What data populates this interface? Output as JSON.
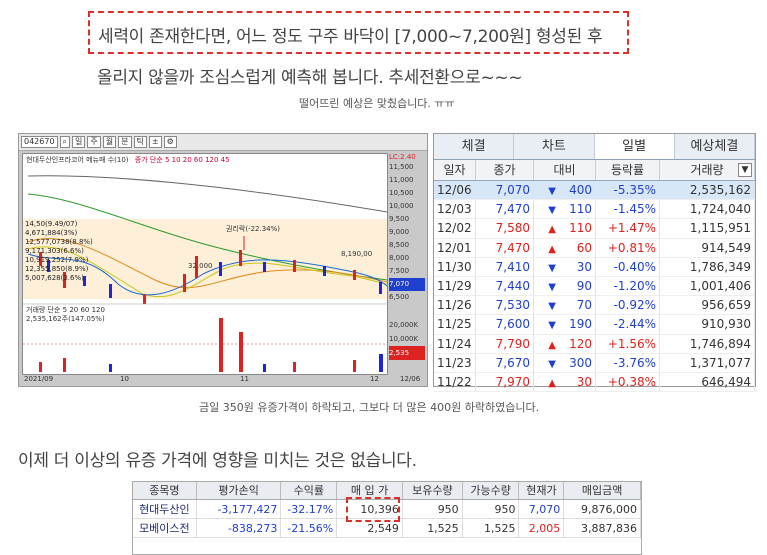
{
  "post": {
    "headline_1": "세력이 존재한다면, 어느 정도 구주 바닥이 [7,000~7,200원] 형성된 후",
    "headline_2": "올리지 않을까 조심스럽게 예측해 봅니다. 추세전환으로~~~",
    "caption_top": "떨어뜨린 예상은 맞췄습니다. ㅠㅠ",
    "caption_mid": "금일 350원 유증가격이 하락되고, 그보다 더 많은 400원 하락하였습니다.",
    "paragraph": "이제 더 이상의 유증 가격에 영향을 미치는 것은 없습니다."
  },
  "chart": {
    "code": "042670",
    "title": "현대두산인프라코어 메뉴매 수(10)",
    "ma_label": "종가 단순 5 10 20 60 120 45",
    "annotation_top": "권리락(-22.34%)",
    "annotation_right": "8,190,00",
    "annotation_left": "32,000",
    "vol_label": "거래량 단순 5 20 60 120",
    "vol_value": "2,535,162주(147.05%)",
    "left_labels": [
      "14,50(9.49/07)",
      "4,671,884(3%)",
      "12,577,0738(8.8%)",
      "9,171,303(6.6%)",
      "10,919,252(7.9%)",
      "12,355,850(8.9%)",
      "5,007,628(3.6%)"
    ],
    "price_axis": [
      "11,500",
      "11,000",
      "10,500",
      "10,000",
      "9,500",
      "9,000",
      "8,500",
      "8,000",
      "7,500",
      "7,070",
      "6,500"
    ],
    "vol_axis": [
      "20,000K",
      "10,000K",
      "2,535"
    ],
    "x_labels": [
      "2021/09",
      "10",
      "11",
      "12",
      "12/06"
    ],
    "corner": "LC:2.40"
  },
  "daily": {
    "tabs": [
      "체결",
      "차트",
      "일별",
      "예상체결"
    ],
    "active_tab": 2,
    "columns": [
      "일자",
      "종가",
      "대비",
      "등락률",
      "거래량"
    ],
    "rows": [
      {
        "date": "12/06",
        "close": "7,070",
        "dir": "down",
        "diff": "400",
        "rate": "-5.35%",
        "vol": "2,535,162"
      },
      {
        "date": "12/03",
        "close": "7,470",
        "dir": "down",
        "diff": "110",
        "rate": "-1.45%",
        "vol": "1,724,040"
      },
      {
        "date": "12/02",
        "close": "7,580",
        "dir": "up",
        "diff": "110",
        "rate": "+1.47%",
        "vol": "1,115,951"
      },
      {
        "date": "12/01",
        "close": "7,470",
        "dir": "up",
        "diff": "60",
        "rate": "+0.81%",
        "vol": "914,549"
      },
      {
        "date": "11/30",
        "close": "7,410",
        "dir": "down",
        "diff": "30",
        "rate": "-0.40%",
        "vol": "1,786,349"
      },
      {
        "date": "11/29",
        "close": "7,440",
        "dir": "down",
        "diff": "90",
        "rate": "-1.20%",
        "vol": "1,001,406"
      },
      {
        "date": "11/26",
        "close": "7,530",
        "dir": "down",
        "diff": "70",
        "rate": "-0.92%",
        "vol": "956,659"
      },
      {
        "date": "11/25",
        "close": "7,600",
        "dir": "down",
        "diff": "190",
        "rate": "-2.44%",
        "vol": "910,930"
      },
      {
        "date": "11/24",
        "close": "7,790",
        "dir": "up",
        "diff": "120",
        "rate": "+1.56%",
        "vol": "1,746,894"
      },
      {
        "date": "11/23",
        "close": "7,670",
        "dir": "down",
        "diff": "300",
        "rate": "-3.76%",
        "vol": "1,371,077"
      },
      {
        "date": "11/22",
        "close": "7,970",
        "dir": "up",
        "diff": "30",
        "rate": "+0.38%",
        "vol": "646,494"
      }
    ]
  },
  "holdings": {
    "columns": [
      "종목명",
      "평가손익",
      "수익률",
      "매 입 가",
      "보유수량",
      "가능수량",
      "현재가",
      "매입금액"
    ],
    "rows": [
      {
        "name": "현대두산인",
        "pnl": "-3,177,427",
        "ret": "-32.17%",
        "buy": "10,396",
        "qty": "950",
        "avail": "950",
        "cur": "7,070",
        "amount": "9,876,000"
      },
      {
        "name": "모베이스전",
        "pnl": "-838,273",
        "ret": "-21.56%",
        "buy": "2,549",
        "qty": "1,525",
        "avail": "1,525",
        "cur": "2,005",
        "amount": "3,887,836"
      }
    ]
  },
  "colors": {
    "up": "#e0201b",
    "down": "#1f3fcf",
    "highlight_border": "#d9302b"
  }
}
